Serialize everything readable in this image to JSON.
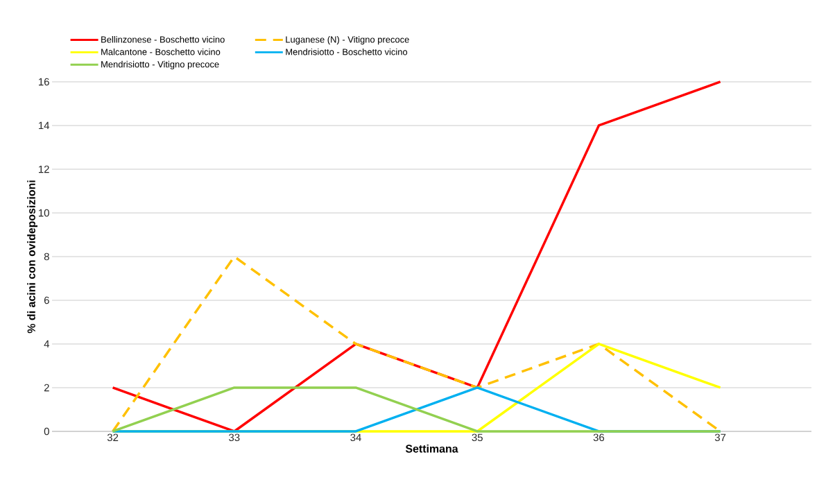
{
  "chart_data": {
    "type": "line",
    "xlabel": "Settimana",
    "ylabel": "% di acini con ovideposizioni",
    "categories": [
      "32",
      "33",
      "34",
      "35",
      "36",
      "37"
    ],
    "series": [
      {
        "name": "Bellinzonese - Boschetto vicino",
        "color": "#ff0000",
        "values": [
          2,
          0,
          4,
          2,
          14,
          16
        ]
      },
      {
        "name": "Luganese (N) - Vitigno precoce",
        "color": "#ffc000",
        "line_style": "dashed",
        "values": [
          0,
          8,
          4,
          2,
          4,
          0
        ]
      },
      {
        "name": "Malcantone - Boschetto vicino",
        "color": "#ffff00",
        "values": [
          0,
          0,
          0,
          0,
          4,
          2
        ]
      },
      {
        "name": "Mendrisiotto - Boschetto vicino",
        "color": "#00b0f0",
        "values": [
          0,
          0,
          0,
          2,
          0,
          0
        ]
      },
      {
        "name": "Mendrisiotto - Vitigno precoce",
        "color": "#92d050",
        "values": [
          0,
          2,
          2,
          0,
          0,
          0
        ]
      }
    ],
    "ylim": [
      0,
      16
    ],
    "yticks": [
      0,
      2,
      4,
      6,
      8,
      10,
      12,
      14,
      16
    ],
    "grid": "y",
    "legend": "top left"
  }
}
